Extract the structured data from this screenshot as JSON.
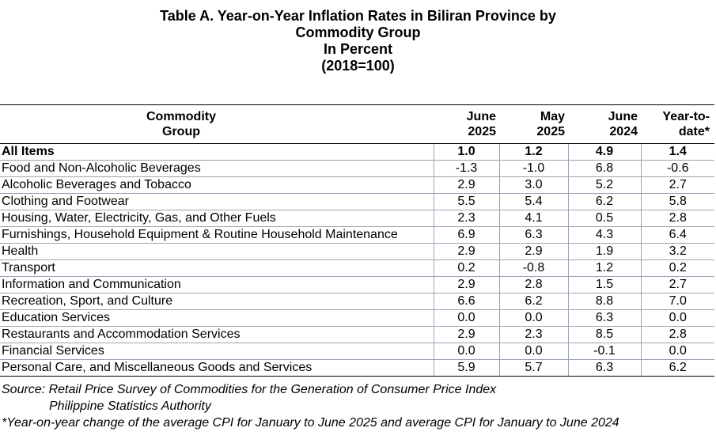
{
  "title": {
    "line1": "Table A. Year-on-Year Inflation Rates in Biliran Province by",
    "line2": "Commodity Group",
    "line3": "In Percent",
    "line4": "(2018=100)"
  },
  "table": {
    "headers": {
      "group": [
        "Commodity",
        "Group"
      ],
      "june2025": [
        "June",
        "2025"
      ],
      "may2025": [
        "May",
        "2025"
      ],
      "june2024": [
        "June",
        "2024"
      ],
      "ytd": [
        "Year-to-",
        "date*"
      ]
    },
    "rows": [
      {
        "group": "All Items",
        "june2025": "1.0",
        "may2025": "1.2",
        "june2024": "4.9",
        "ytd": "1.4"
      },
      {
        "group": "Food and Non-Alcoholic Beverages",
        "june2025": "-1.3",
        "may2025": "-1.0",
        "june2024": "6.8",
        "ytd": "-0.6"
      },
      {
        "group": "Alcoholic Beverages and Tobacco",
        "june2025": "2.9",
        "may2025": "3.0",
        "june2024": "5.2",
        "ytd": "2.7"
      },
      {
        "group": "Clothing and Footwear",
        "june2025": "5.5",
        "may2025": "5.4",
        "june2024": "6.2",
        "ytd": "5.8"
      },
      {
        "group": "Housing, Water, Electricity, Gas, and Other Fuels",
        "june2025": "2.3",
        "may2025": "4.1",
        "june2024": "0.5",
        "ytd": "2.8"
      },
      {
        "group": "Furnishings, Household Equipment & Routine Household Maintenance",
        "june2025": "6.9",
        "may2025": "6.3",
        "june2024": "4.3",
        "ytd": "6.4"
      },
      {
        "group": "Health",
        "june2025": "2.9",
        "may2025": "2.9",
        "june2024": "1.9",
        "ytd": "3.2"
      },
      {
        "group": "Transport",
        "june2025": "0.2",
        "may2025": "-0.8",
        "june2024": "1.2",
        "ytd": "0.2"
      },
      {
        "group": "Information and Communication",
        "june2025": "2.9",
        "may2025": "2.8",
        "june2024": "1.5",
        "ytd": "2.7"
      },
      {
        "group": "Recreation, Sport, and Culture",
        "june2025": "6.6",
        "may2025": "6.2",
        "june2024": "8.8",
        "ytd": "7.0"
      },
      {
        "group": "Education Services",
        "june2025": "0.0",
        "may2025": "0.0",
        "june2024": "6.3",
        "ytd": "0.0"
      },
      {
        "group": "Restaurants and Accommodation Services",
        "june2025": "2.9",
        "may2025": "2.3",
        "june2024": "8.5",
        "ytd": "2.8"
      },
      {
        "group": "Financial Services",
        "june2025": "0.0",
        "may2025": "0.0",
        "june2024": "-0.1",
        "ytd": "0.0"
      },
      {
        "group": "Personal Care, and Miscellaneous Goods and Services",
        "june2025": "5.9",
        "may2025": "5.7",
        "june2024": "6.3",
        "ytd": "6.2"
      }
    ]
  },
  "notes": {
    "source_line1": "Source: Retail Price Survey of Commodities for the Generation of Consumer Price Index",
    "source_line2": "Philippine Statistics Authority",
    "footnote": "*Year-on-year change of the average CPI for January to June 2025 and average CPI for January to June 2024"
  }
}
